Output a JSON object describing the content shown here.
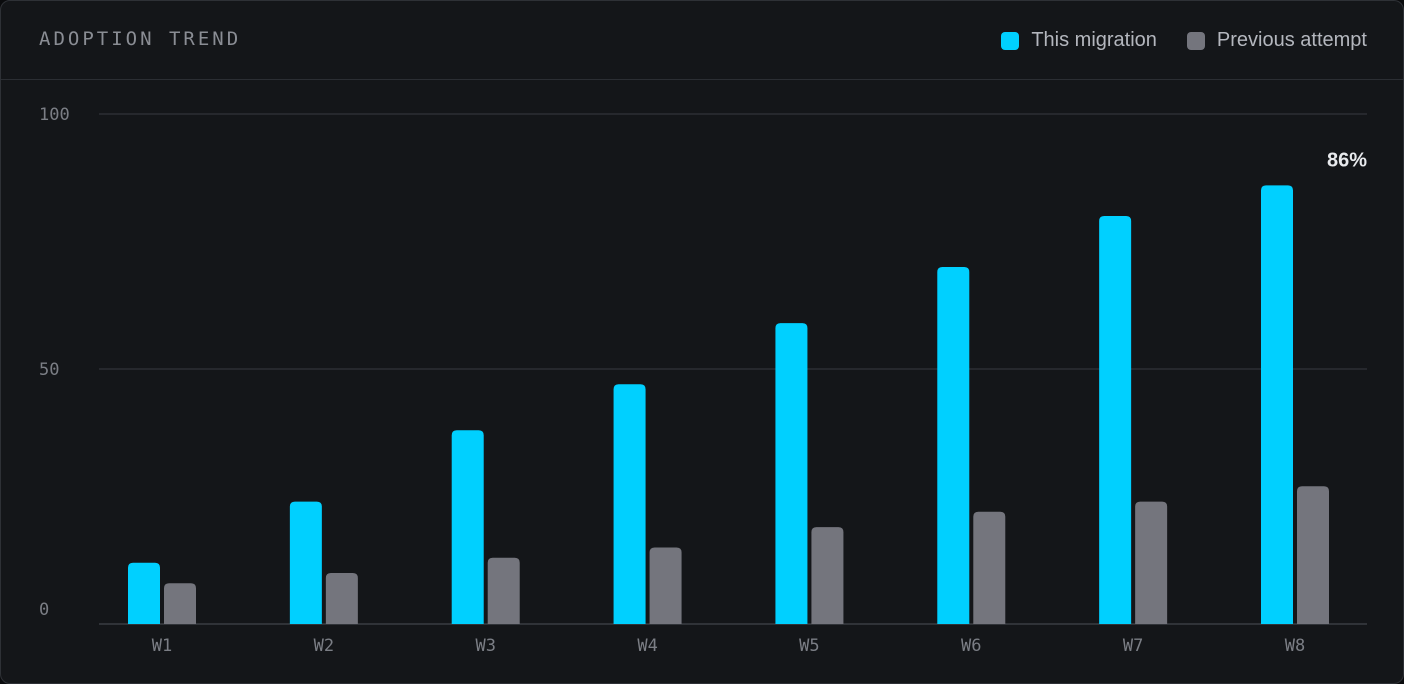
{
  "card": {
    "title": "ADOPTION TREND"
  },
  "legend": [
    {
      "label": "This migration",
      "color": "#00d0ff"
    },
    {
      "label": "Previous attempt",
      "color": "#74757d"
    }
  ],
  "chart_data": {
    "type": "bar",
    "title": "ADOPTION TREND",
    "categories": [
      "W1",
      "W2",
      "W3",
      "W4",
      "W5",
      "W6",
      "W7",
      "W8"
    ],
    "series": [
      {
        "name": "This migration",
        "color": "#00d0ff",
        "values": [
          12,
          24,
          38,
          47,
          59,
          70,
          80,
          86
        ]
      },
      {
        "name": "Previous attempt",
        "color": "#74757d",
        "values": [
          8,
          10,
          13,
          15,
          19,
          22,
          24,
          27
        ]
      }
    ],
    "yticks": [
      0,
      50,
      100
    ],
    "ylim": [
      0,
      100
    ],
    "grid": true,
    "legend_position": "top-right",
    "annotations": [
      {
        "category": "W8",
        "series": "This migration",
        "text": "86%"
      }
    ]
  }
}
